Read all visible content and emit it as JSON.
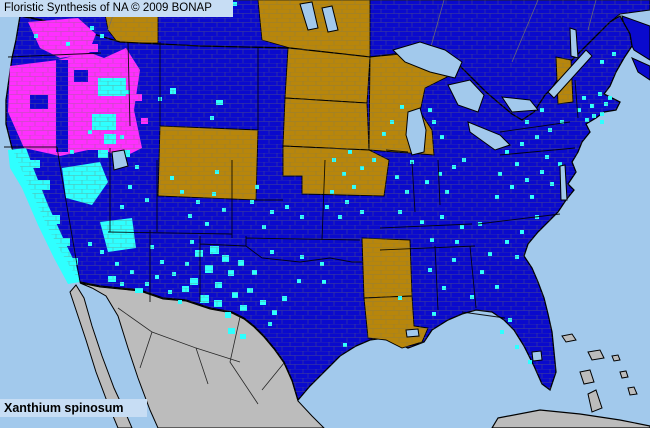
{
  "header": {
    "title": "Floristic Synthesis of NA © 2009 BONAP"
  },
  "footer": {
    "species_label": "Xanthium spinosum"
  },
  "colors": {
    "navy_state_present": "#0A0ACD",
    "cyan_county_present": "#2FFFFF",
    "magenta_noxious": "#FF2FFF",
    "olive_state_absent": "#B8860B",
    "water": "#A2C9EC",
    "panel_bg": "#C7DDF4",
    "outside_gray": "#BCBCBC",
    "state_border": "#000000",
    "county_line": "#6E6E5E",
    "province_line": "#707070"
  },
  "regions": {
    "olive_absent": [
      "Alberta",
      "Manitoba",
      "Wyoming",
      "North Dakota",
      "South Dakota",
      "Minnesota",
      "Nebraska",
      "Vermont",
      "Arkansas",
      "Louisiana"
    ],
    "magenta_noxious": [
      "Washington",
      "Oregon",
      "Idaho"
    ],
    "gray_outside_coverage": [
      "Mexico",
      "Baja California",
      "Cuba",
      "Bahamas"
    ],
    "navy_present": [
      "remaining United States and Canada"
    ]
  },
  "county_dots": [
    [
      66,
      42
    ],
    [
      90,
      26
    ],
    [
      34,
      34
    ],
    [
      100,
      34
    ],
    [
      98,
      78,
      28,
      18
    ],
    [
      92,
      114,
      24,
      16
    ],
    [
      104,
      134,
      12,
      10
    ],
    [
      122,
      150,
      8,
      7
    ],
    [
      98,
      150,
      10,
      8
    ],
    [
      126,
      90
    ],
    [
      158,
      97
    ],
    [
      170,
      88,
      6,
      6
    ],
    [
      210,
      116
    ],
    [
      216,
      100,
      7,
      5
    ],
    [
      233,
      2
    ],
    [
      36,
      180,
      14,
      10
    ],
    [
      48,
      215,
      12,
      9
    ],
    [
      30,
      160,
      10,
      8
    ],
    [
      60,
      238,
      10,
      8
    ],
    [
      70,
      258,
      8,
      7
    ],
    [
      88,
      130
    ],
    [
      70,
      150
    ],
    [
      120,
      135
    ],
    [
      110,
      120
    ],
    [
      135,
      165
    ],
    [
      128,
      185
    ],
    [
      145,
      198
    ],
    [
      120,
      205
    ],
    [
      115,
      262
    ],
    [
      130,
      270
    ],
    [
      145,
      282
    ],
    [
      120,
      282
    ],
    [
      100,
      250
    ],
    [
      88,
      242
    ],
    [
      108,
      276,
      8,
      6
    ],
    [
      135,
      288,
      8,
      5
    ],
    [
      160,
      260
    ],
    [
      172,
      272
    ],
    [
      185,
      262
    ],
    [
      168,
      290
    ],
    [
      155,
      275
    ],
    [
      178,
      300
    ],
    [
      150,
      245
    ],
    [
      190,
      240
    ],
    [
      182,
      286,
      7,
      6
    ],
    [
      180,
      190
    ],
    [
      196,
      200
    ],
    [
      212,
      192
    ],
    [
      188,
      214
    ],
    [
      205,
      222
    ],
    [
      222,
      208
    ],
    [
      170,
      176
    ],
    [
      215,
      170
    ],
    [
      250,
      200
    ],
    [
      270,
      210
    ],
    [
      262,
      225
    ],
    [
      285,
      205
    ],
    [
      300,
      215
    ],
    [
      255,
      185
    ],
    [
      270,
      250
    ],
    [
      300,
      255
    ],
    [
      320,
      262
    ],
    [
      297,
      279
    ],
    [
      195,
      250,
      8,
      7
    ],
    [
      210,
      246,
      9,
      8
    ],
    [
      222,
      255,
      7,
      7
    ],
    [
      205,
      265,
      8,
      8
    ],
    [
      190,
      278,
      8,
      7
    ],
    [
      215,
      282,
      7,
      6
    ],
    [
      228,
      270,
      6,
      6
    ],
    [
      200,
      295,
      9,
      8
    ],
    [
      214,
      300,
      8,
      7
    ],
    [
      232,
      292,
      6,
      6
    ],
    [
      240,
      305,
      7,
      6
    ],
    [
      225,
      312,
      6,
      6
    ],
    [
      247,
      288,
      6,
      5
    ],
    [
      238,
      260,
      6,
      6
    ],
    [
      252,
      270,
      5,
      5
    ],
    [
      260,
      300,
      6,
      5
    ],
    [
      272,
      310,
      5,
      5
    ],
    [
      282,
      296,
      5,
      5
    ],
    [
      228,
      328,
      7,
      6
    ],
    [
      240,
      334,
      6,
      5
    ],
    [
      268,
      322
    ],
    [
      343,
      343
    ],
    [
      322,
      280
    ],
    [
      330,
      190
    ],
    [
      345,
      200
    ],
    [
      338,
      215
    ],
    [
      352,
      185
    ],
    [
      360,
      210
    ],
    [
      342,
      172
    ],
    [
      325,
      205
    ],
    [
      332,
      158
    ],
    [
      348,
      150
    ],
    [
      360,
      166
    ],
    [
      372,
      158
    ],
    [
      395,
      175
    ],
    [
      405,
      190
    ],
    [
      398,
      210
    ],
    [
      410,
      160
    ],
    [
      390,
      120
    ],
    [
      400,
      105
    ],
    [
      382,
      132
    ],
    [
      408,
      130
    ],
    [
      432,
      120
    ],
    [
      440,
      135
    ],
    [
      428,
      108
    ],
    [
      425,
      180
    ],
    [
      438,
      172
    ],
    [
      452,
      165
    ],
    [
      462,
      158
    ],
    [
      445,
      190
    ],
    [
      420,
      220
    ],
    [
      440,
      215
    ],
    [
      460,
      225
    ],
    [
      478,
      222
    ],
    [
      430,
      238
    ],
    [
      455,
      240
    ],
    [
      398,
      296
    ],
    [
      432,
      312
    ],
    [
      428,
      268
    ],
    [
      442,
      286
    ],
    [
      452,
      258
    ],
    [
      480,
      270
    ],
    [
      495,
      285
    ],
    [
      470,
      295
    ],
    [
      488,
      252
    ],
    [
      500,
      330
    ],
    [
      515,
      345
    ],
    [
      528,
      360
    ],
    [
      508,
      318
    ],
    [
      505,
      240
    ],
    [
      520,
      230
    ],
    [
      535,
      215
    ],
    [
      515,
      255
    ],
    [
      495,
      195
    ],
    [
      510,
      185
    ],
    [
      525,
      178
    ],
    [
      540,
      170
    ],
    [
      550,
      182
    ],
    [
      530,
      195
    ],
    [
      498,
      172
    ],
    [
      515,
      162
    ],
    [
      558,
      162
    ],
    [
      545,
      155
    ],
    [
      505,
      150
    ],
    [
      520,
      142
    ],
    [
      535,
      135
    ],
    [
      548,
      128
    ],
    [
      560,
      120
    ],
    [
      540,
      108
    ],
    [
      525,
      120
    ],
    [
      582,
      96
    ],
    [
      590,
      104
    ],
    [
      598,
      92
    ],
    [
      604,
      102
    ],
    [
      592,
      114
    ],
    [
      600,
      112
    ],
    [
      608,
      96
    ],
    [
      585,
      118
    ],
    [
      600,
      120
    ],
    [
      600,
      60
    ],
    [
      612,
      52
    ],
    [
      577,
      108
    ],
    [
      134,
      94,
      8,
      7,
      "m"
    ],
    [
      141,
      118,
      7,
      6,
      "m"
    ],
    [
      88,
      44,
      10,
      8,
      "m"
    ]
  ]
}
